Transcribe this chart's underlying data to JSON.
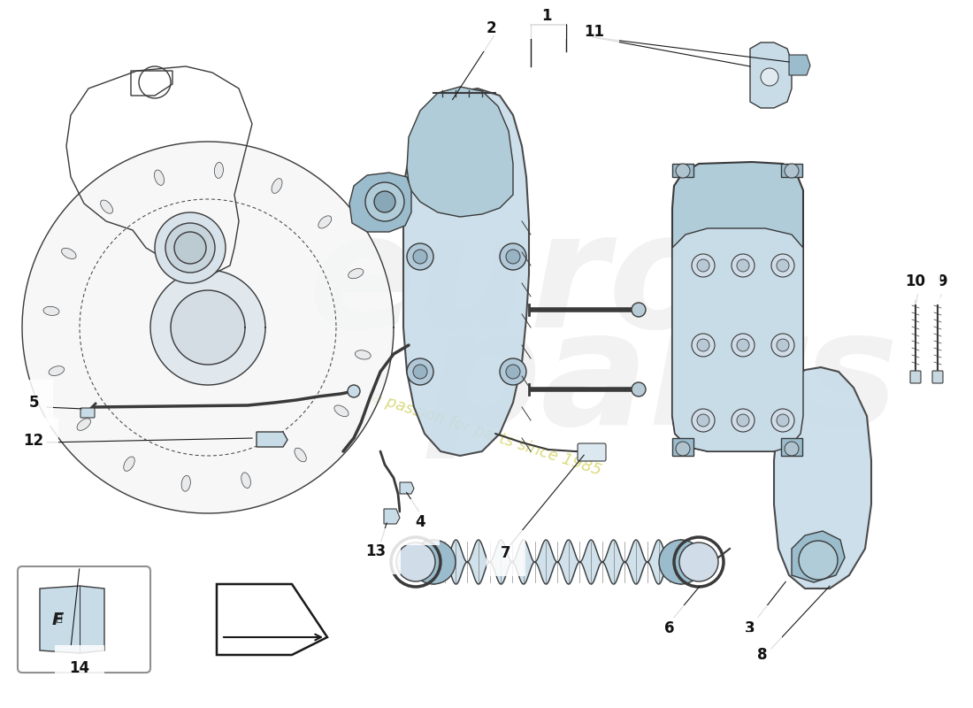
{
  "background_color": "#ffffff",
  "part_color_light": "#c8dce8",
  "part_color_medium": "#9abccc",
  "part_color_mid2": "#b0ccd8",
  "outline_color": "#3a3a3a",
  "line_color": "#1a1a1a",
  "watermark_gray": "#c8c8c8",
  "watermark_yellow": "#d4d400",
  "font_size_labels": 12,
  "figsize": [
    11.0,
    8.0
  ],
  "dpi": 100
}
